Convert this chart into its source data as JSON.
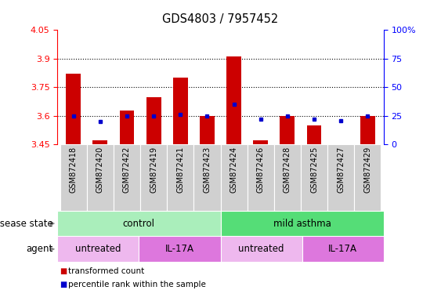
{
  "title": "GDS4803 / 7957452",
  "samples": [
    "GSM872418",
    "GSM872420",
    "GSM872422",
    "GSM872419",
    "GSM872421",
    "GSM872423",
    "GSM872424",
    "GSM872426",
    "GSM872428",
    "GSM872425",
    "GSM872427",
    "GSM872429"
  ],
  "transformed_counts": [
    3.82,
    3.47,
    3.63,
    3.7,
    3.8,
    3.6,
    3.91,
    3.47,
    3.6,
    3.55,
    3.45,
    3.6
  ],
  "percentile_ranks": [
    25,
    20,
    25,
    25,
    26,
    25,
    35,
    22,
    25,
    22,
    21,
    25
  ],
  "base_value": 3.45,
  "ylim_left": [
    3.45,
    4.05
  ],
  "ylim_right": [
    0,
    100
  ],
  "yticks_left": [
    3.45,
    3.6,
    3.75,
    3.9,
    4.05
  ],
  "yticks_left_labels": [
    "3.45",
    "3.6",
    "3.75",
    "3.9",
    "4.05"
  ],
  "yticks_right": [
    0,
    25,
    50,
    75,
    100
  ],
  "yticks_right_labels": [
    "0",
    "25",
    "50",
    "75",
    "100%"
  ],
  "grid_lines": [
    3.6,
    3.75,
    3.9
  ],
  "bar_color": "#cc0000",
  "dot_color": "#0000cc",
  "gray_bg": "#d0d0d0",
  "disease_state_groups": [
    {
      "label": "control",
      "start": 0,
      "end": 6,
      "color": "#aaeebb"
    },
    {
      "label": "mild asthma",
      "start": 6,
      "end": 12,
      "color": "#55dd77"
    }
  ],
  "agent_groups": [
    {
      "label": "untreated",
      "start": 0,
      "end": 3,
      "color": "#eeb8ee"
    },
    {
      "label": "IL-17A",
      "start": 3,
      "end": 6,
      "color": "#dd77dd"
    },
    {
      "label": "untreated",
      "start": 6,
      "end": 9,
      "color": "#eeb8ee"
    },
    {
      "label": "IL-17A",
      "start": 9,
      "end": 12,
      "color": "#dd77dd"
    }
  ],
  "legend_items": [
    {
      "label": "transformed count",
      "color": "#cc0000"
    },
    {
      "label": "percentile rank within the sample",
      "color": "#0000cc"
    }
  ],
  "title_fontsize": 10.5,
  "tick_fontsize": 8,
  "sample_fontsize": 7,
  "annot_fontsize": 8.5
}
